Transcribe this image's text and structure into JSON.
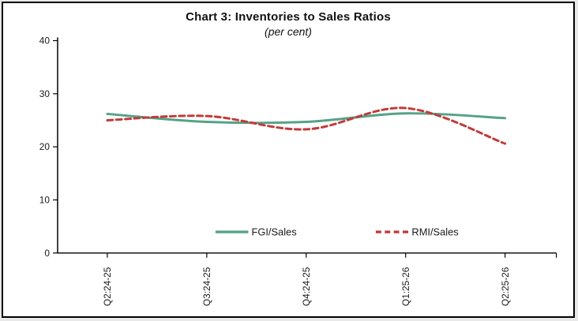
{
  "title": "Chart 3: Inventories to Sales Ratios",
  "subtitle": "(per cent)",
  "colors": {
    "fgi_line": "#55A287",
    "rmi_line": "#C23A3A",
    "axis": "#000000",
    "text": "#1a1a1a",
    "background": "#ffffff",
    "frame_border": "#000000"
  },
  "chart_data": {
    "type": "line",
    "title": "Chart 3: Inventories to Sales Ratios",
    "subtitle": "(per cent)",
    "categories": [
      "Q2:24-25",
      "Q3:24-25",
      "Q4:24-25",
      "Q1:25-26",
      "Q2:25-26"
    ],
    "series": [
      {
        "name": "FGI/Sales",
        "style": "solid",
        "color": "#55A287",
        "values": [
          26.2,
          24.7,
          24.7,
          26.3,
          25.4
        ]
      },
      {
        "name": "RMI/Sales",
        "style": "dashed",
        "color": "#C23A3A",
        "values": [
          25.0,
          25.8,
          23.3,
          27.3,
          20.6
        ]
      }
    ],
    "xlabel": "",
    "ylabel": "",
    "ylim": [
      0,
      40
    ],
    "yticks": [
      0,
      10,
      20,
      30,
      40
    ],
    "grid": false,
    "legend_position": "bottom-inside",
    "line_smoothing": true
  }
}
